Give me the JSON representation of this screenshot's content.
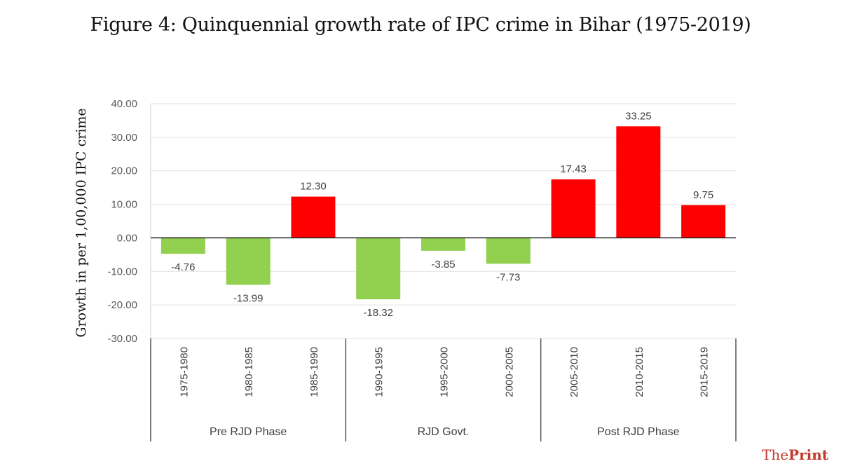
{
  "title": "Figure 4: Quinquennial growth rate of IPC crime in Bihar (1975-2019)",
  "brand": {
    "part1": "The",
    "part2": "Print"
  },
  "chart_data": {
    "type": "bar",
    "ylabel": "Growth in per 1,00,000 IPC crime",
    "xlabel": "",
    "ylim": [
      -30,
      40
    ],
    "yticks": [
      "40.00",
      "30.00",
      "20.00",
      "10.00",
      "0.00",
      "-10.00",
      "-20.00",
      "-30.00"
    ],
    "ytick_values": [
      40,
      30,
      20,
      10,
      0,
      -10,
      -20,
      -30
    ],
    "categories": [
      "1975-1980",
      "1980-1985",
      "1985-1990",
      "1990-1995",
      "1995-2000",
      "2000-2005",
      "2005-2010",
      "2010-2015",
      "2015-2019"
    ],
    "values": [
      -4.76,
      -13.99,
      12.3,
      -18.32,
      -3.85,
      -7.73,
      17.43,
      33.25,
      9.75
    ],
    "value_labels": [
      "-4.76",
      "-13.99",
      "12.30",
      "-18.32",
      "-3.85",
      "-7.73",
      "17.43",
      "33.25",
      "9.75"
    ],
    "groups": [
      {
        "label": "Pre RJD Phase",
        "count": 3
      },
      {
        "label": "RJD Govt.",
        "count": 3
      },
      {
        "label": "Post RJD Phase",
        "count": 3
      }
    ],
    "colors": {
      "positive": "#ff0000",
      "negative": "#92d050"
    },
    "grid": true,
    "legend": "none"
  }
}
